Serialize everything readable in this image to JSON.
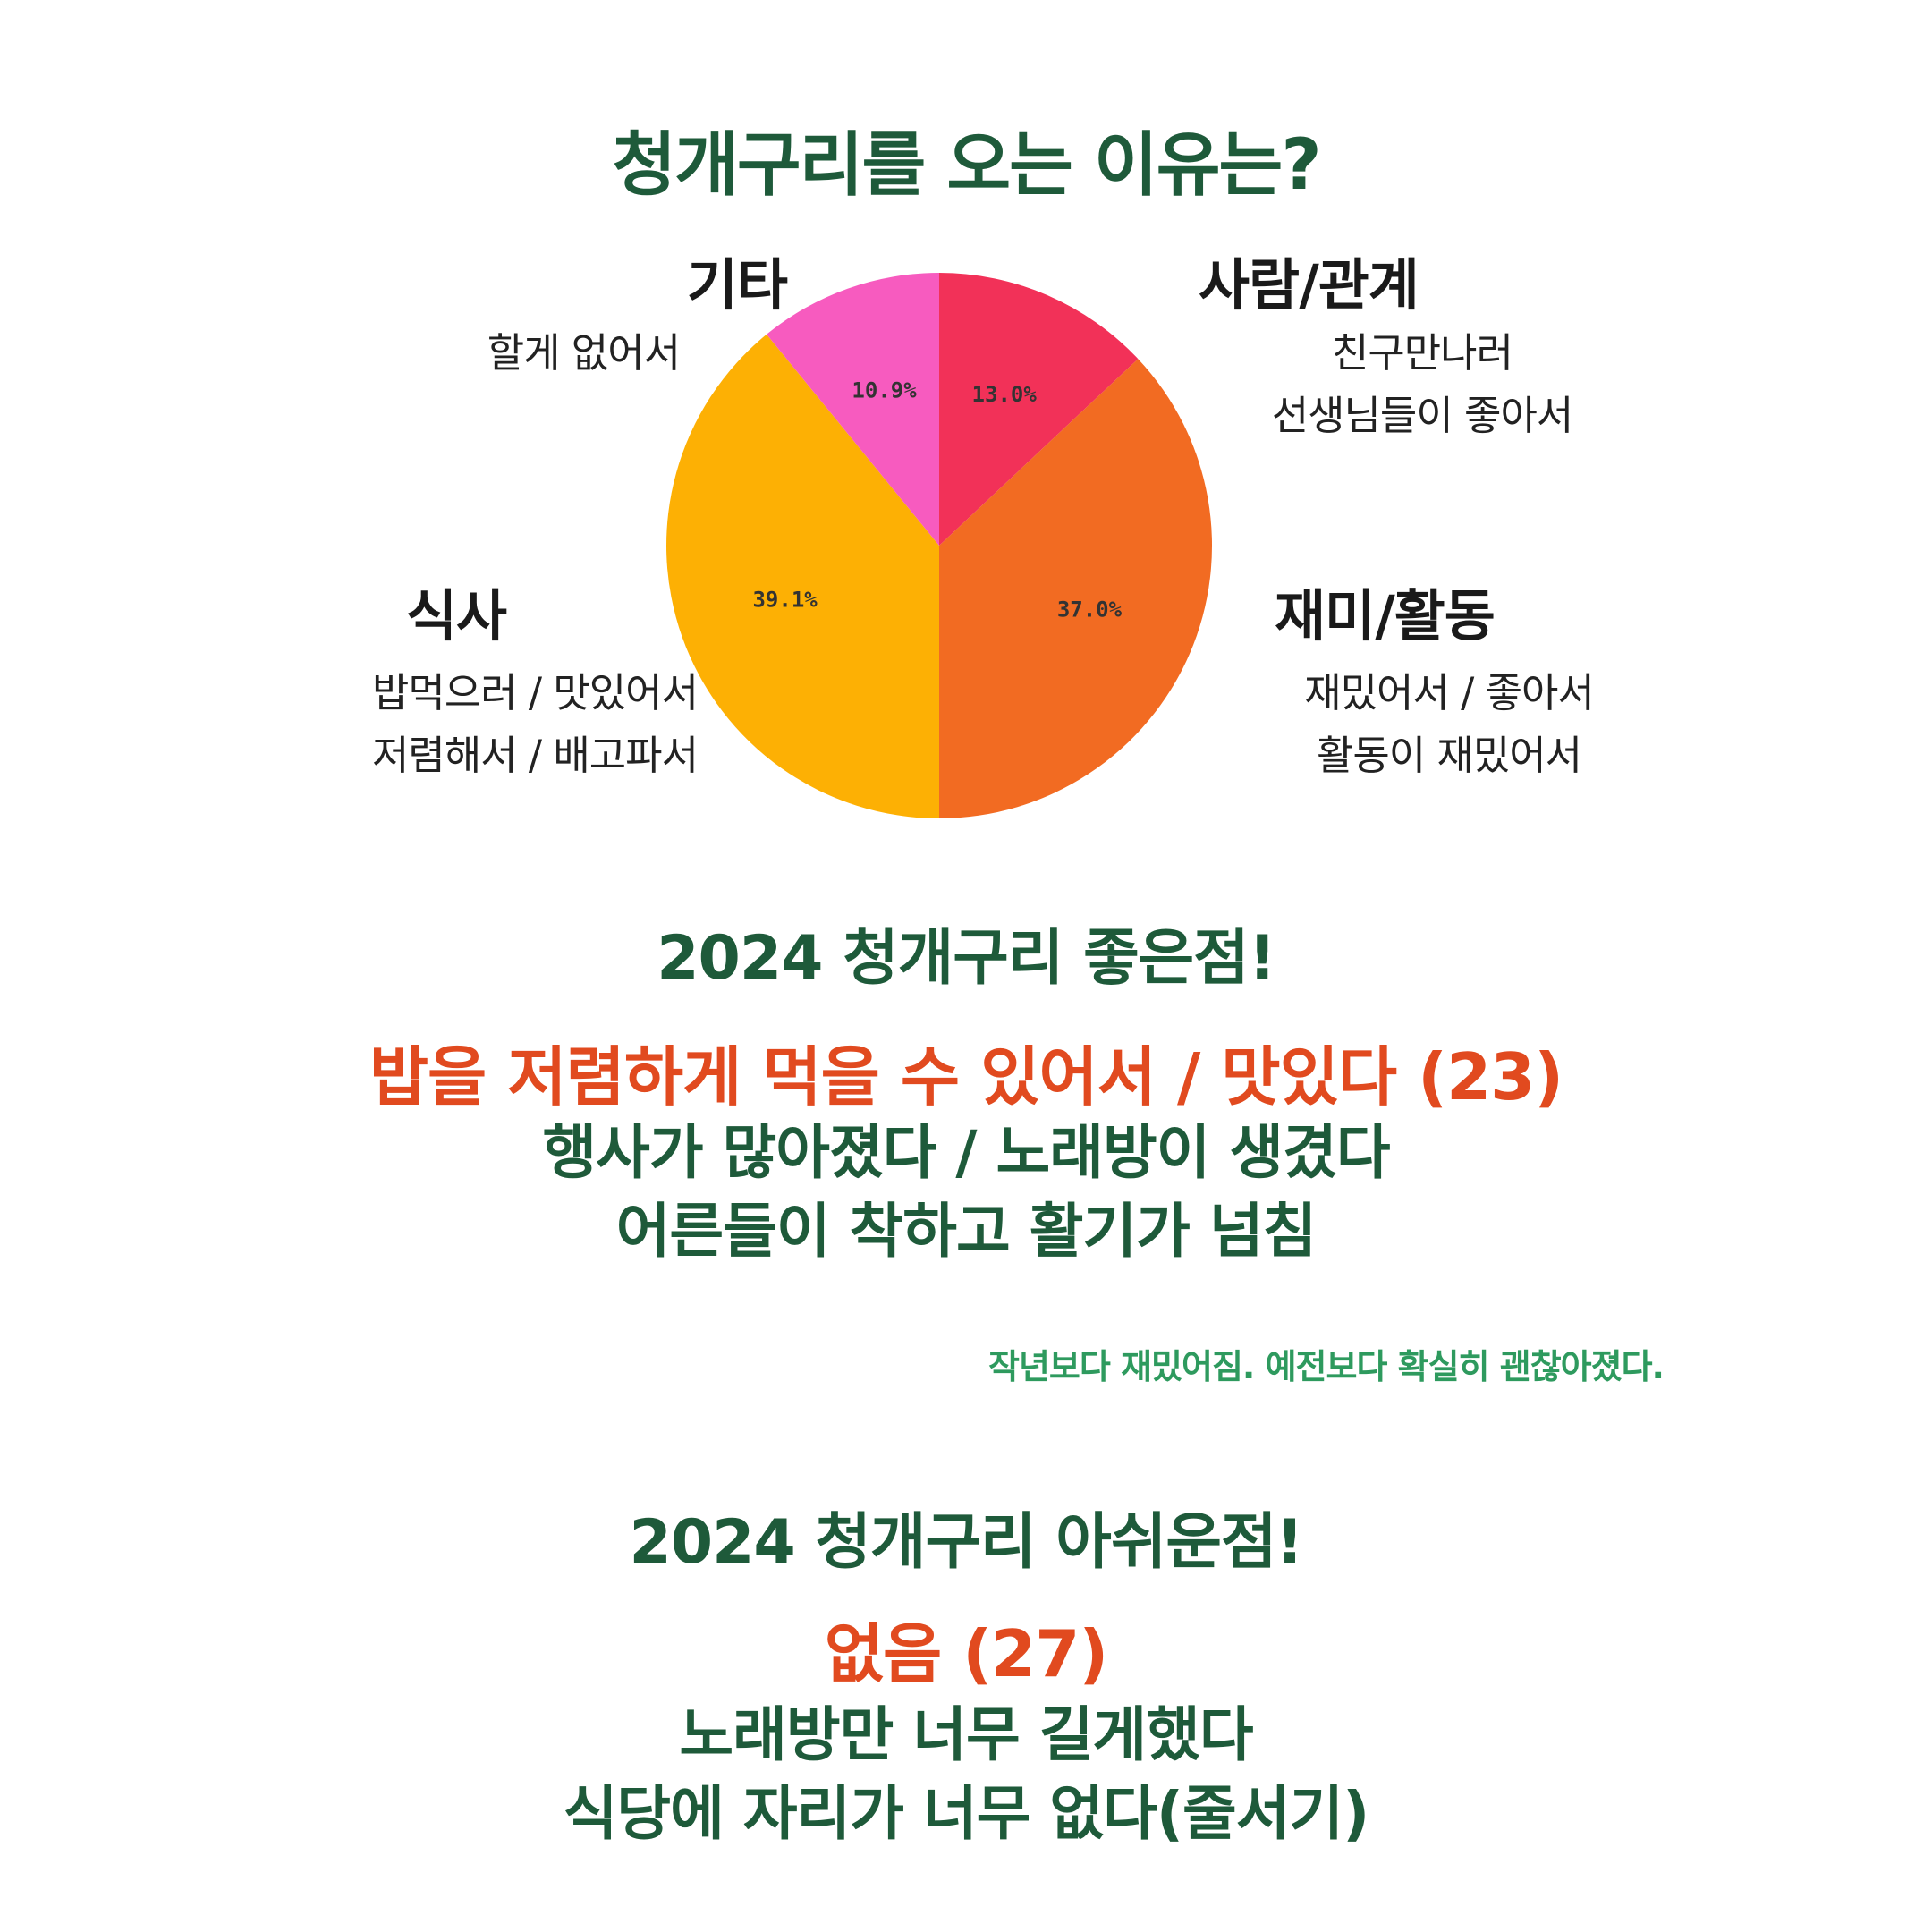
{
  "title": "청개구리를 오는 이유는?",
  "categories": {
    "other": {
      "title": "기타",
      "lines": [
        "할게 없어서"
      ]
    },
    "relation": {
      "title": "사람/관계",
      "lines": [
        "친구만나러",
        "선생님들이 좋아서"
      ]
    },
    "meal": {
      "title": "식사",
      "lines": [
        "밥먹으러 / 맛있어서",
        "저렴해서 / 배고파서"
      ]
    },
    "fun": {
      "title": "재미/활동",
      "lines": [
        "재밌어서 / 좋아서",
        "활동이 재밌어서"
      ]
    }
  },
  "chart_data": {
    "type": "pie",
    "title": "청개구리를 오는 이유는?",
    "slices": [
      {
        "label": "사람/관계",
        "value": 13.0,
        "display": "13.0%",
        "color": "#f23158"
      },
      {
        "label": "재미/활동",
        "value": 37.0,
        "display": "37.0%",
        "color": "#f26b22"
      },
      {
        "label": "식사",
        "value": 39.1,
        "display": "39.1%",
        "color": "#fdb004"
      },
      {
        "label": "기타",
        "value": 10.9,
        "display": "10.9%",
        "color": "#f75bbf"
      }
    ],
    "start_angle_deg": 0,
    "direction": "clockwise",
    "label_color": "#333333"
  },
  "good": {
    "title": "2024 청개구리 좋은점!",
    "highlight": "밥을 저렴하게 먹을 수 있어서 / 맛있다 (23)",
    "lines": [
      "행사가 많아졌다 / 노래방이 생겼다",
      "어른들이 착하고 활기가 넘침"
    ],
    "note": "작년보다 재밌어짐. 예전보다 확실히 괜찮아졌다."
  },
  "bad": {
    "title": "2024 청개구리 아쉬운점!",
    "highlight": "없음 (27)",
    "lines": [
      "노래방만 너무 길게했다",
      "식당에 자리가 너무 없다(줄서기)"
    ]
  },
  "colors": {
    "green": "#1e5a3a",
    "accent": "#e14a1f",
    "note_green": "#2e9a5e"
  }
}
